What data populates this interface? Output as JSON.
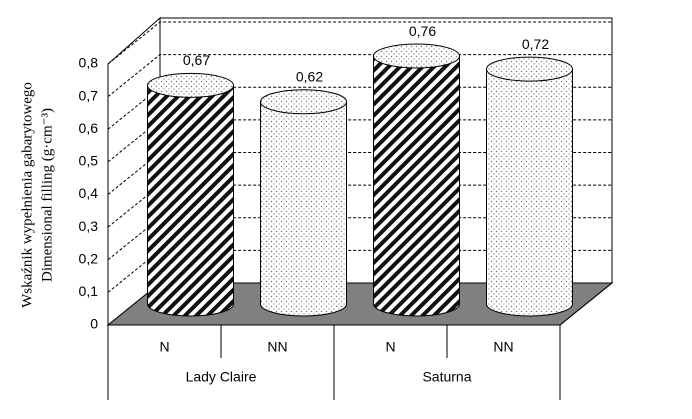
{
  "chart_data": {
    "type": "bar",
    "y_label_lines": [
      "Wskaźnik wypełnienia gabarytowego",
      "Dimensional filling  (g·cm⁻³)"
    ],
    "categories": [
      "N",
      "NN",
      "N",
      "NN"
    ],
    "groups": [
      "Lady Claire",
      "Saturna"
    ],
    "patterns": [
      "hatch",
      "dots",
      "hatch",
      "dots"
    ],
    "values": [
      0.67,
      0.62,
      0.76,
      0.72
    ],
    "value_labels": [
      "0,67",
      "0,62",
      "0,76",
      "0,72"
    ],
    "ylim": [
      0,
      0.8
    ],
    "yticks": [
      0,
      {
        "value": 0.1,
        "label": "0,1"
      },
      {
        "value": 0.2,
        "label": "0,2"
      },
      {
        "value": 0.3,
        "label": "0,3"
      },
      {
        "value": 0.4,
        "label": "0,4"
      },
      {
        "value": 0.5,
        "label": "0,5"
      },
      {
        "value": 0.6,
        "label": "0,6"
      },
      {
        "value": 0.7,
        "label": "0,7"
      },
      {
        "value": 0.8,
        "label": "0,8"
      }
    ],
    "grid": true
  }
}
